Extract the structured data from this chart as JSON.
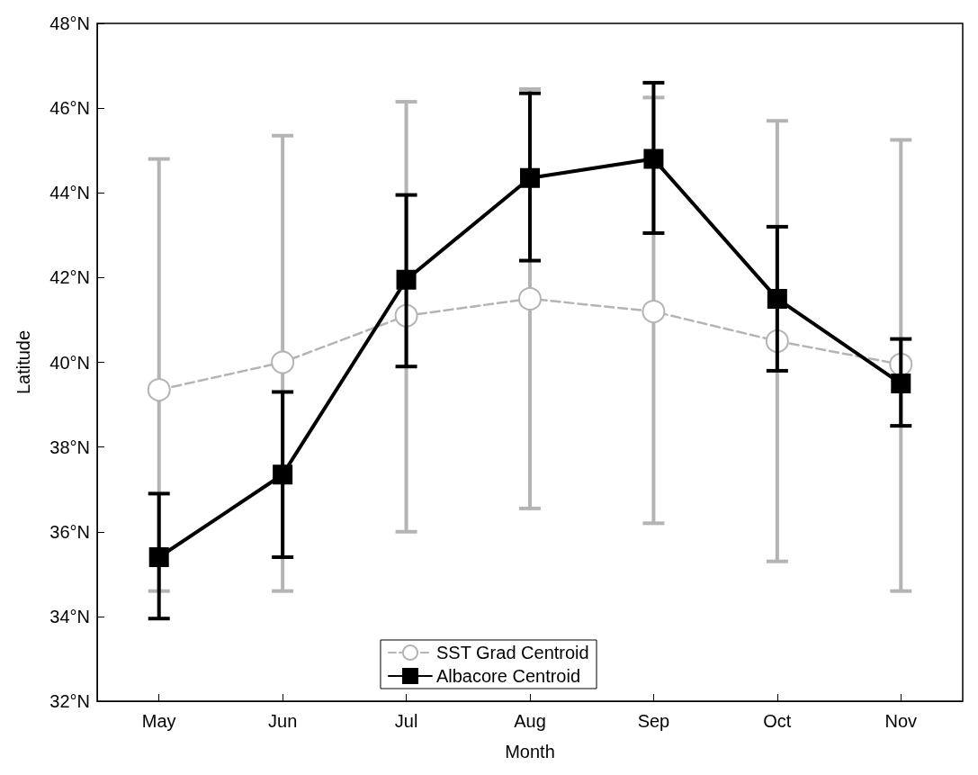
{
  "chart_data": {
    "type": "line",
    "xlabel": "Month",
    "ylabel": "Latitude",
    "categories": [
      "May",
      "Jun",
      "Jul",
      "Aug",
      "Sep",
      "Oct",
      "Nov"
    ],
    "series": [
      {
        "name": "SST Grad Centroid",
        "color": "#b4b4b4",
        "marker": "circle",
        "line_style": "dashed",
        "values": [
          39.35,
          40.0,
          41.1,
          41.5,
          41.2,
          40.5,
          39.95
        ],
        "errors": [
          [
            34.6,
            44.8
          ],
          [
            34.6,
            45.35
          ],
          [
            36.0,
            46.15
          ],
          [
            36.55,
            46.45
          ],
          [
            36.2,
            46.25
          ],
          [
            35.3,
            45.7
          ],
          [
            34.6,
            45.25
          ]
        ]
      },
      {
        "name": "Albacore Centroid",
        "color": "#000000",
        "marker": "square",
        "line_style": "solid",
        "values": [
          35.4,
          37.35,
          41.95,
          44.35,
          44.8,
          41.5,
          39.5
        ],
        "errors": [
          [
            33.95,
            36.9
          ],
          [
            35.4,
            39.3
          ],
          [
            39.9,
            43.95
          ],
          [
            42.4,
            46.35
          ],
          [
            43.05,
            46.6
          ],
          [
            39.8,
            43.2
          ],
          [
            38.5,
            40.55
          ]
        ]
      }
    ],
    "ylim": [
      32,
      48
    ],
    "yticks": [
      {
        "value": 32,
        "label": "32°N"
      },
      {
        "value": 34,
        "label": "34°N"
      },
      {
        "value": 36,
        "label": "36°N"
      },
      {
        "value": 38,
        "label": "38°N"
      },
      {
        "value": 40,
        "label": "40°N"
      },
      {
        "value": 42,
        "label": "42°N"
      },
      {
        "value": 44,
        "label": "44°N"
      },
      {
        "value": 46,
        "label": "46°N"
      },
      {
        "value": 48,
        "label": "48°N"
      }
    ],
    "grid": false,
    "legend": "bottom"
  }
}
